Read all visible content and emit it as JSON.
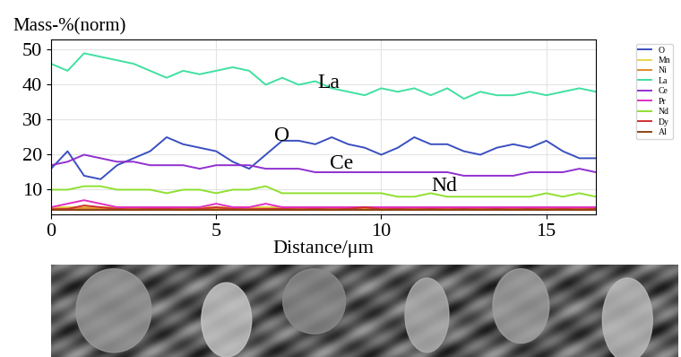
{
  "chart_data": {
    "type": "line",
    "y_label": "Mass-%(norm)",
    "x_label": "Distance/μm",
    "xlim": [
      0,
      16.5
    ],
    "xticks": [
      0,
      5,
      10,
      15
    ],
    "ylim": [
      3,
      53
    ],
    "yticks": [
      10,
      20,
      30,
      40,
      50
    ],
    "grid": true,
    "legend": "upper right",
    "x": [
      0,
      0.5,
      1,
      1.5,
      2,
      2.5,
      3,
      3.5,
      4,
      4.5,
      5,
      5.5,
      6,
      6.5,
      7,
      7.5,
      8,
      8.5,
      9,
      9.5,
      10,
      10.5,
      11,
      11.5,
      12,
      12.5,
      13,
      13.5,
      14,
      14.5,
      15,
      15.5,
      16,
      16.5
    ],
    "series": [
      {
        "name": "O",
        "color": "#3a4fc0",
        "values": [
          16,
          21,
          14,
          13,
          17,
          19,
          21,
          25,
          23,
          22,
          21,
          18,
          16,
          20,
          24,
          24,
          23,
          25,
          23,
          22,
          20,
          22,
          25,
          23,
          23,
          21,
          20,
          22,
          23,
          22,
          24,
          21,
          19,
          19
        ]
      },
      {
        "name": "Mn",
        "color": "#e6d84a",
        "values": [
          5,
          5,
          5,
          5,
          5,
          5,
          5,
          5,
          5,
          5,
          5,
          5,
          5,
          5,
          5,
          5,
          5,
          5,
          5,
          5,
          5,
          5,
          5,
          5,
          5,
          5,
          5,
          5,
          5,
          5,
          5,
          5,
          5,
          5
        ]
      },
      {
        "name": "Ni",
        "color": "#e08a2a",
        "values": [
          4.6,
          4.6,
          4.7,
          4.6,
          4.6,
          4.6,
          4.6,
          4.6,
          4.6,
          4.6,
          4.6,
          4.6,
          4.6,
          4.6,
          4.6,
          4.6,
          4.6,
          4.6,
          4.6,
          4.6,
          4.6,
          4.6,
          4.6,
          4.6,
          4.6,
          4.6,
          4.6,
          4.6,
          4.6,
          4.6,
          4.6,
          4.6,
          4.6,
          4.6
        ]
      },
      {
        "name": "La",
        "color": "#40e0a0",
        "values": [
          46,
          44,
          49,
          48,
          47,
          46,
          44,
          42,
          44,
          43,
          44,
          45,
          44,
          40,
          42,
          40,
          41,
          39,
          38,
          37,
          39,
          38,
          39,
          37,
          39,
          36,
          38,
          37,
          37,
          38,
          37,
          38,
          39,
          38
        ]
      },
      {
        "name": "Ce",
        "color": "#9030d0",
        "values": [
          17,
          18,
          20,
          19,
          18,
          18,
          17,
          17,
          17,
          16,
          17,
          17,
          17,
          16,
          16,
          16,
          15,
          15,
          15,
          15,
          15,
          15,
          15,
          15,
          15,
          14,
          14,
          14,
          14,
          15,
          15,
          15,
          16,
          15
        ]
      },
      {
        "name": "Pr",
        "color": "#e030c0",
        "values": [
          5,
          6,
          7,
          6,
          5,
          5,
          5,
          5,
          5,
          5,
          6,
          5,
          5,
          6,
          5,
          5,
          5,
          5,
          5,
          5,
          5,
          5,
          5,
          5,
          5,
          5,
          5,
          5,
          5,
          5,
          5,
          5,
          5,
          5
        ]
      },
      {
        "name": "Nd",
        "color": "#90e030",
        "values": [
          10,
          10,
          11,
          11,
          10,
          10,
          10,
          9,
          10,
          10,
          9,
          10,
          10,
          11,
          9,
          9,
          9,
          9,
          9,
          9,
          9,
          8,
          8,
          9,
          8,
          8,
          8,
          8,
          8,
          8,
          9,
          8,
          9,
          8
        ]
      },
      {
        "name": "Dy",
        "color": "#d03030",
        "values": [
          4.4,
          4.5,
          5.5,
          5,
          4.5,
          4.4,
          4.5,
          4.5,
          4.4,
          4.5,
          5,
          4.5,
          4.4,
          4.5,
          4.5,
          4.4,
          4.5,
          4.4,
          4.5,
          5,
          4.4,
          4.5,
          4.4,
          4.5,
          4.4,
          4.5,
          4.4,
          4.5,
          4.4,
          4.5,
          4.4,
          4.5,
          4.4,
          4.5
        ]
      },
      {
        "name": "Al",
        "color": "#8b4513",
        "values": [
          4.2,
          4.2,
          4.2,
          4.2,
          4.2,
          4.2,
          4.2,
          4.2,
          4.2,
          4.2,
          4.2,
          4.2,
          4.2,
          4.2,
          4.2,
          4.2,
          4.2,
          4.2,
          4.2,
          4.2,
          4.2,
          4.2,
          4.2,
          4.2,
          4.2,
          4.2,
          4.2,
          4.2,
          4.2,
          4.2,
          4.2,
          4.2,
          4.2,
          4.2
        ]
      }
    ],
    "annotations": [
      {
        "text": "La",
        "x": 8.4,
        "y": 40.5
      },
      {
        "text": "O",
        "x": 7.0,
        "y": 25.5
      },
      {
        "text": "Ce",
        "x": 8.8,
        "y": 17.5
      },
      {
        "text": "Nd",
        "x": 11.9,
        "y": 11.0
      }
    ]
  }
}
